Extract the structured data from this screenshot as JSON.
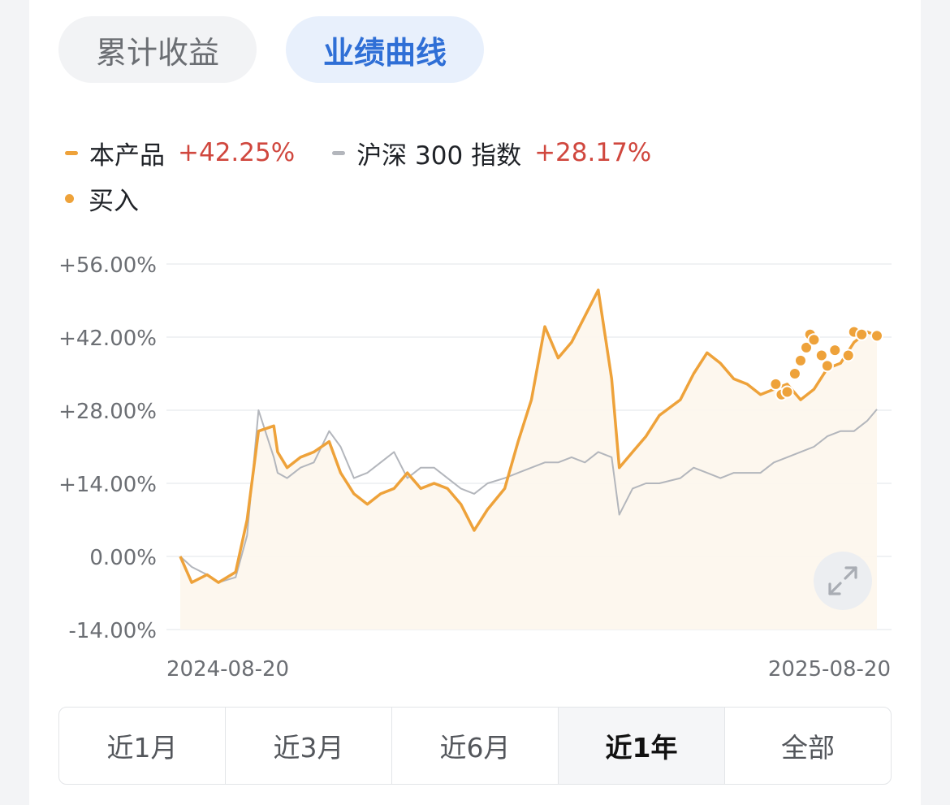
{
  "tabs": [
    {
      "label": "累计收益",
      "active": false
    },
    {
      "label": "业绩曲线",
      "active": true
    }
  ],
  "legend": {
    "product": {
      "name": "本产品",
      "value": "+42.25%",
      "color": "#eea23a"
    },
    "index": {
      "name": "沪深 300 指数",
      "value": "+28.17%",
      "color": "#b3b6bc"
    },
    "buy": {
      "name": "买入",
      "color": "#eea23a"
    }
  },
  "periods": [
    {
      "label": "近1月",
      "selected": false
    },
    {
      "label": "近3月",
      "selected": false
    },
    {
      "label": "近6月",
      "selected": false
    },
    {
      "label": "近1年",
      "selected": true
    },
    {
      "label": "全部",
      "selected": false
    }
  ],
  "chart_data": {
    "type": "line",
    "x_start_label": "2024-08-20",
    "x_end_label": "2025-08-20",
    "x_range": [
      "2024-08-20",
      "2025-08-20"
    ],
    "ylim": [
      -14,
      56
    ],
    "yticks": [
      "+56.00%",
      "+42.00%",
      "+28.00%",
      "+14.00%",
      "0.00%",
      "-14.00%"
    ],
    "ytick_values": [
      56,
      42,
      28,
      14,
      0,
      -14
    ],
    "grid": true,
    "series": [
      {
        "name": "本产品",
        "color": "#eea23a",
        "x": [
          "2024-08-20",
          "2024-08-26",
          "2024-09-03",
          "2024-09-09",
          "2024-09-18",
          "2024-09-24",
          "2024-09-30",
          "2024-10-08",
          "2024-10-10",
          "2024-10-15",
          "2024-10-22",
          "2024-10-29",
          "2024-11-06",
          "2024-11-12",
          "2024-11-19",
          "2024-11-26",
          "2024-12-03",
          "2024-12-10",
          "2024-12-17",
          "2024-12-24",
          "2024-12-31",
          "2025-01-07",
          "2025-01-14",
          "2025-01-21",
          "2025-01-28",
          "2025-02-06",
          "2025-02-13",
          "2025-02-20",
          "2025-02-27",
          "2025-03-06",
          "2025-03-13",
          "2025-03-20",
          "2025-03-27",
          "2025-04-03",
          "2025-04-07",
          "2025-04-14",
          "2025-04-21",
          "2025-04-28",
          "2025-05-09",
          "2025-05-16",
          "2025-05-23",
          "2025-05-30",
          "2025-06-06",
          "2025-06-13",
          "2025-06-20",
          "2025-06-27",
          "2025-07-04",
          "2025-07-11",
          "2025-07-18",
          "2025-07-25",
          "2025-08-01",
          "2025-08-08",
          "2025-08-15",
          "2025-08-20"
        ],
        "values": [
          0,
          -5,
          -3.5,
          -5,
          -3,
          7,
          24,
          25,
          20,
          17,
          19,
          20,
          22,
          16,
          12,
          10,
          12,
          13,
          16,
          13,
          14,
          13,
          10,
          5,
          9,
          13,
          22,
          30,
          44,
          38,
          41,
          46,
          51,
          34,
          17,
          20,
          23,
          27,
          30,
          35,
          39,
          37,
          34,
          33,
          31,
          32,
          33,
          30,
          32,
          36,
          37,
          41,
          43,
          42.25
        ]
      },
      {
        "name": "沪深 300 指数",
        "color": "#b3b6bc",
        "x": [
          "2024-08-20",
          "2024-08-26",
          "2024-09-03",
          "2024-09-09",
          "2024-09-18",
          "2024-09-24",
          "2024-09-30",
          "2024-10-08",
          "2024-10-10",
          "2024-10-15",
          "2024-10-22",
          "2024-10-29",
          "2024-11-06",
          "2024-11-12",
          "2024-11-19",
          "2024-11-26",
          "2024-12-03",
          "2024-12-10",
          "2024-12-17",
          "2024-12-24",
          "2024-12-31",
          "2025-01-07",
          "2025-01-14",
          "2025-01-21",
          "2025-01-28",
          "2025-02-06",
          "2025-02-13",
          "2025-02-20",
          "2025-02-27",
          "2025-03-06",
          "2025-03-13",
          "2025-03-20",
          "2025-03-27",
          "2025-04-03",
          "2025-04-07",
          "2025-04-14",
          "2025-04-21",
          "2025-04-28",
          "2025-05-09",
          "2025-05-16",
          "2025-05-23",
          "2025-05-30",
          "2025-06-06",
          "2025-06-13",
          "2025-06-20",
          "2025-06-27",
          "2025-07-04",
          "2025-07-11",
          "2025-07-18",
          "2025-07-25",
          "2025-08-01",
          "2025-08-08",
          "2025-08-15",
          "2025-08-20"
        ],
        "values": [
          0,
          -2,
          -3.5,
          -5,
          -4,
          4,
          28,
          19,
          16,
          15,
          17,
          18,
          24,
          21,
          15,
          16,
          18,
          20,
          15,
          17,
          17,
          15,
          13,
          12,
          14,
          15,
          16,
          17,
          18,
          18,
          19,
          18,
          20,
          19,
          8,
          13,
          14,
          14,
          15,
          17,
          16,
          15,
          16,
          16,
          16,
          18,
          19,
          20,
          21,
          23,
          24,
          24,
          26,
          28.17
        ]
      }
    ],
    "buy_points": [
      {
        "x": "2025-06-28",
        "value": 33
      },
      {
        "x": "2025-07-01",
        "value": 31
      },
      {
        "x": "2025-07-04",
        "value": 31.5
      },
      {
        "x": "2025-07-08",
        "value": 35
      },
      {
        "x": "2025-07-11",
        "value": 37.5
      },
      {
        "x": "2025-07-14",
        "value": 40
      },
      {
        "x": "2025-07-16",
        "value": 42.5
      },
      {
        "x": "2025-07-18",
        "value": 41.5
      },
      {
        "x": "2025-07-22",
        "value": 38.5
      },
      {
        "x": "2025-07-25",
        "value": 36.5
      },
      {
        "x": "2025-07-29",
        "value": 39.5
      },
      {
        "x": "2025-08-05",
        "value": 38.5
      },
      {
        "x": "2025-08-08",
        "value": 43
      },
      {
        "x": "2025-08-12",
        "value": 42.5
      },
      {
        "x": "2025-08-20",
        "value": 42.25
      }
    ]
  }
}
